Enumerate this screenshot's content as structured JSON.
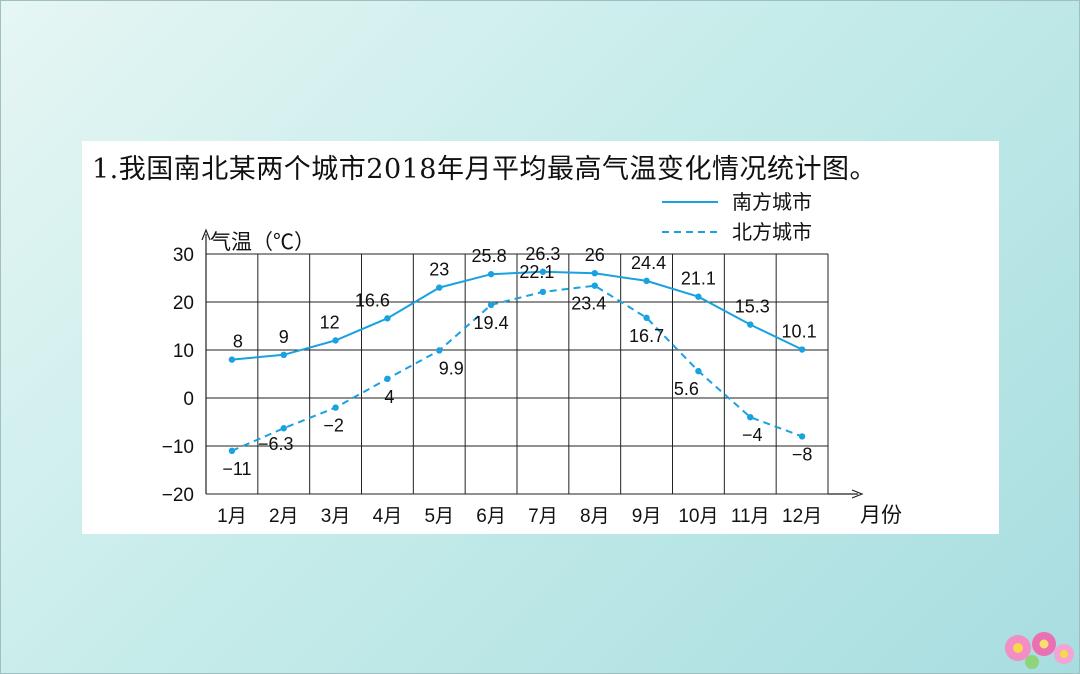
{
  "title": "1.我国南北某两个城市2018年月平均最高气温变化情况统计图。",
  "chart_data": {
    "type": "line",
    "ylabel": "气温（℃）",
    "xlabel": "月份",
    "categories": [
      "1月",
      "2月",
      "3月",
      "4月",
      "5月",
      "6月",
      "7月",
      "8月",
      "9月",
      "10月",
      "11月",
      "12月"
    ],
    "ylim": [
      -20,
      30
    ],
    "yticks": [
      "30",
      "20",
      "10",
      "0",
      "−10",
      "−20"
    ],
    "grid": true,
    "legend_position": "top-right",
    "series": [
      {
        "name": "南方城市",
        "style": "solid",
        "color": "#1aa1e0",
        "values": [
          8,
          9,
          12,
          16.6,
          23,
          25.8,
          26.3,
          26,
          24.4,
          21.1,
          15.3,
          10.1
        ],
        "labels": [
          "8",
          "9",
          "12",
          "16.6",
          "23",
          "25.8",
          "26.3",
          "26",
          "24.4",
          "21.1",
          "15.3",
          "10.1"
        ]
      },
      {
        "name": "北方城市",
        "style": "dashed",
        "color": "#1aa1e0",
        "values": [
          -11,
          -6.3,
          -2,
          4,
          9.9,
          19.4,
          22.1,
          23.4,
          16.7,
          5.6,
          -4,
          -8
        ],
        "labels": [
          "−11",
          "−6.3",
          "−2",
          "4",
          "9.9",
          "19.4",
          "22.1",
          "23.4",
          "16.7",
          "5.6",
          "−4",
          "−8"
        ]
      }
    ]
  }
}
